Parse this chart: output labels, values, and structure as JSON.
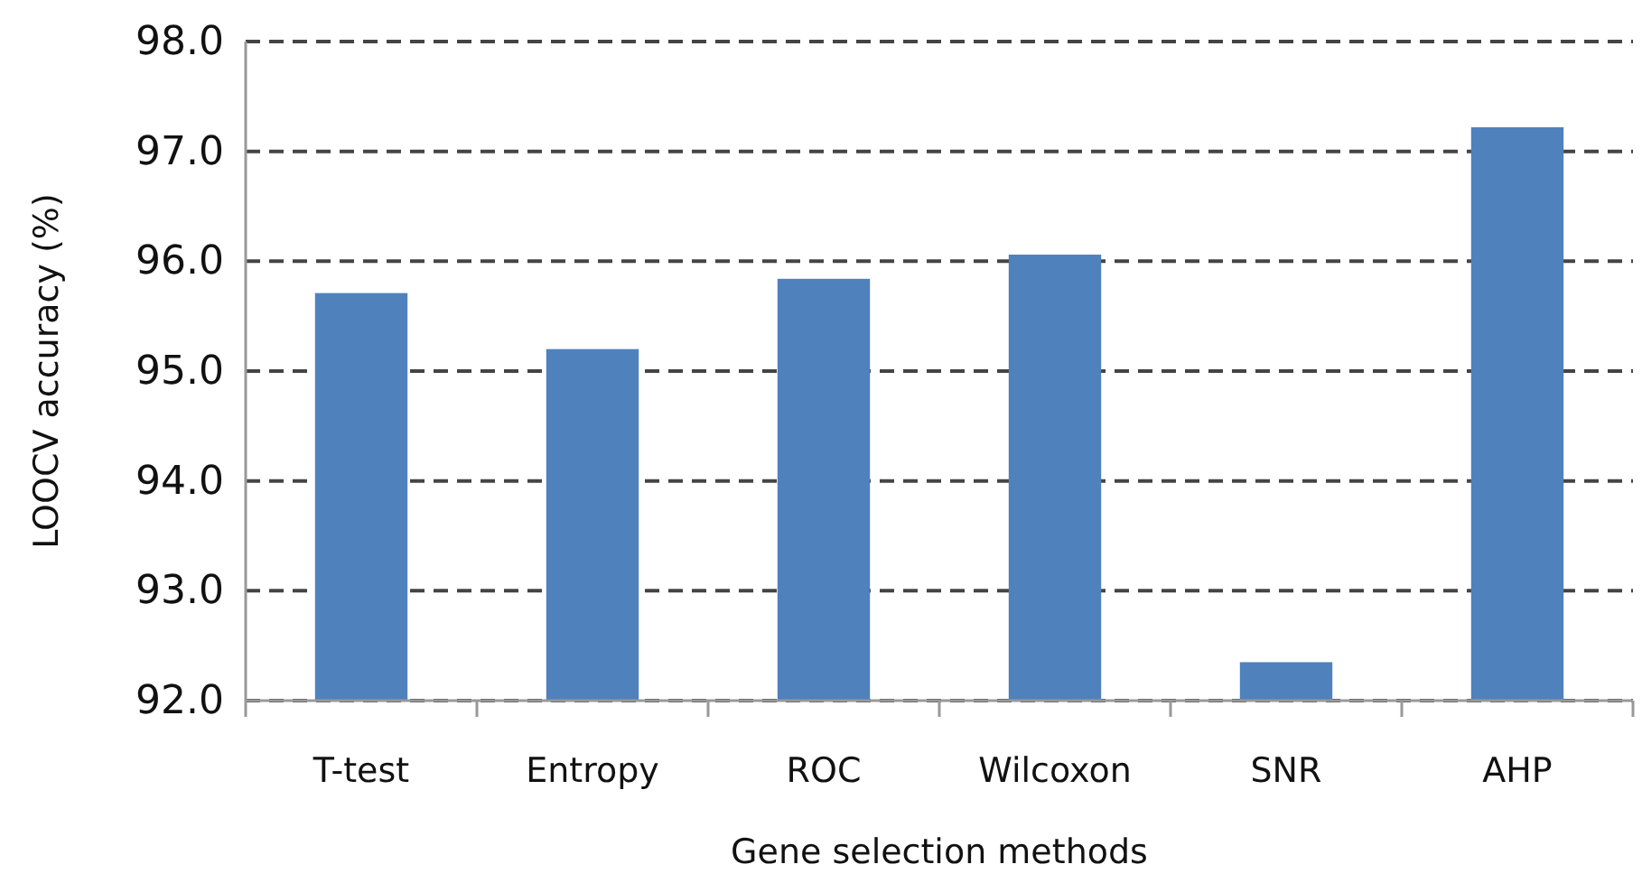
{
  "chart_data": {
    "type": "bar",
    "xlabel": "Gene selection methods",
    "ylabel": "LOOCV accuracy (%)",
    "categories": [
      "T-test",
      "Entropy",
      "ROC",
      "Wilcoxon",
      "SNR",
      "AHP"
    ],
    "values": [
      95.71,
      95.2,
      95.84,
      96.06,
      92.35,
      97.22
    ],
    "color": "#4f81bd",
    "ylim": [
      92,
      98
    ],
    "yticks": [
      {
        "value": 92,
        "label": "92.0"
      },
      {
        "value": 93,
        "label": "93.0"
      },
      {
        "value": 94,
        "label": "94.0"
      },
      {
        "value": 95,
        "label": "95.0"
      },
      {
        "value": 96,
        "label": "96.0"
      },
      {
        "value": 97,
        "label": "97.0"
      },
      {
        "value": 98,
        "label": "98.0"
      }
    ],
    "grid": "y"
  }
}
